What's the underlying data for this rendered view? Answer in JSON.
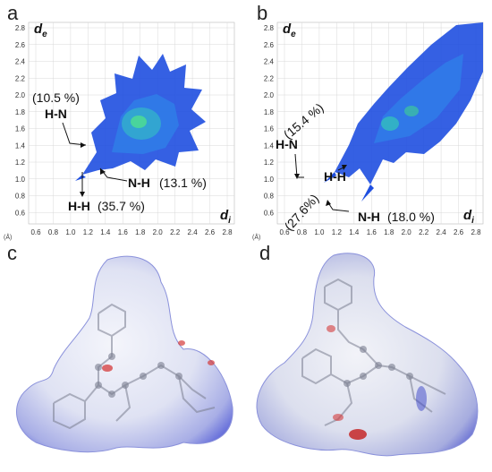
{
  "panels": {
    "a": {
      "letter": "a",
      "y_axis_label": "d",
      "y_axis_sub": "e",
      "x_axis_label": "d",
      "x_axis_sub": "i",
      "unit_label": "(Å)",
      "y_ticks": [
        "2.8",
        "2.6",
        "2.4",
        "2.2",
        "2.0",
        "1.8",
        "1.6",
        "1.4",
        "1.2",
        "1.0",
        "0.8",
        "0.6"
      ],
      "x_ticks": [
        "0.6",
        "0.8",
        "1.0",
        "1.2",
        "1.4",
        "1.6",
        "1.8",
        "2.0",
        "2.2",
        "2.4",
        "2.6",
        "2.8"
      ],
      "annotations": {
        "hn_pct": "(10.5 %)",
        "hn_label": "H-N",
        "nh_label": "N-H",
        "nh_pct": "(13.1 %)",
        "hh_label": "H-H",
        "hh_pct": "(35.7 %)"
      }
    },
    "b": {
      "letter": "b",
      "y_axis_label": "d",
      "y_axis_sub": "e",
      "x_axis_label": "d",
      "x_axis_sub": "i",
      "unit_label": "(Å)",
      "y_ticks": [
        "2.8",
        "2.6",
        "2.4",
        "2.2",
        "2.0",
        "1.8",
        "1.6",
        "1.4",
        "1.2",
        "1.0",
        "0.8",
        "0.6"
      ],
      "x_ticks": [
        "0.6",
        "0.8",
        "1.0",
        "1.2",
        "1.4",
        "1.6",
        "1.8",
        "2.0",
        "2.2",
        "2.4",
        "2.6",
        "2.8"
      ],
      "annotations": {
        "hn_pct": "(15.4 %)",
        "hn_label": "H-N",
        "hh_label": "H-H",
        "hh_pct": "(27.6%)",
        "nh_label": "N-H",
        "nh_pct": "(18.0 %)"
      }
    },
    "c": {
      "letter": "c"
    },
    "d": {
      "letter": "d"
    }
  },
  "colors": {
    "fingerprint_low": "#1b3fd8",
    "fingerprint_high": "#3fd38f",
    "surface_white": "#eef0f8",
    "surface_blue": "#4a55d6",
    "surface_red": "#d43a3a",
    "grid": "#d8d8d8"
  }
}
